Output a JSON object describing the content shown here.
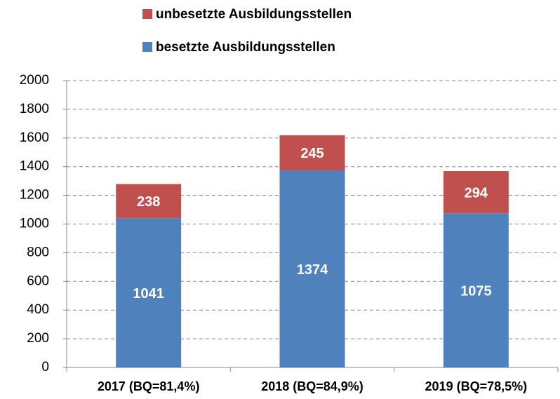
{
  "chart_data": {
    "type": "stacked_bar",
    "categories": [
      "2017 (BQ=81,4%)",
      "2018 (BQ=84,9%)",
      "2019 (BQ=78,5%)"
    ],
    "series": [
      {
        "name": "besetzte Ausbildungsstellen",
        "color": "#4f81bd",
        "values": [
          1041,
          1374,
          1075
        ]
      },
      {
        "name": "unbesetzte Ausbildungsstellen",
        "color": "#c0504d",
        "values": [
          238,
          245,
          294
        ]
      }
    ],
    "ylim": [
      0,
      2000
    ],
    "yticks": [
      0,
      200,
      400,
      600,
      800,
      1000,
      1200,
      1400,
      1600,
      1800,
      2000
    ],
    "grid": true,
    "legend": "top"
  }
}
